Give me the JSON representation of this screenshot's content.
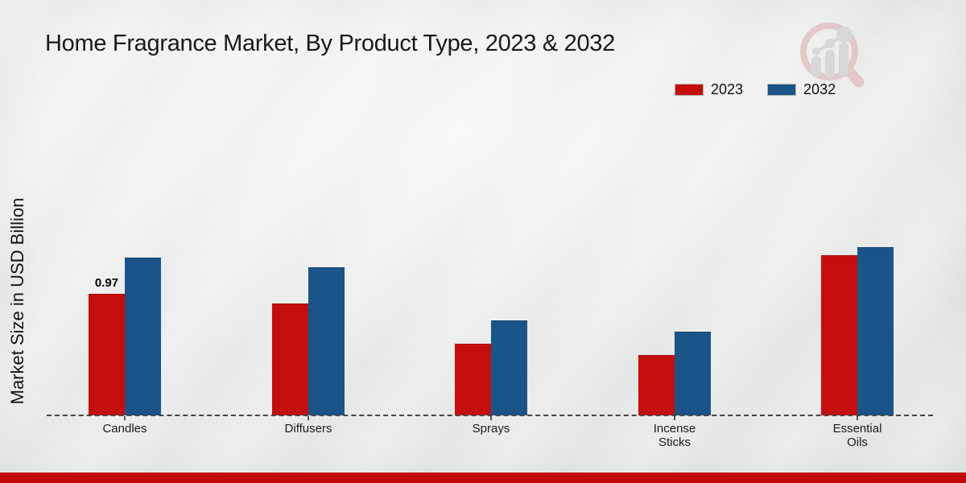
{
  "chart_data": {
    "type": "bar",
    "title": "Home Fragrance Market, By Product Type, 2023 & 2032",
    "ylabel": "Market Size in USD Billion",
    "categories": [
      "Candles",
      "Diffusers",
      "Sprays",
      "Incense Sticks",
      "Essential Oils"
    ],
    "series": [
      {
        "name": "2023",
        "color": "#c60d0d",
        "values": [
          0.97,
          0.89,
          0.57,
          0.48,
          1.28
        ]
      },
      {
        "name": "2032",
        "color": "#1a5488",
        "values": [
          1.26,
          1.18,
          0.76,
          0.67,
          1.34
        ]
      }
    ],
    "ylim": [
      0,
      1.55
    ],
    "grid": false,
    "x_axis_style": "dashed-baseline",
    "legend_position": "top-right",
    "data_labels": [
      {
        "series": "2023",
        "category": "Candles",
        "text": "0.97"
      }
    ]
  },
  "watermark": {
    "name": "market-research-magnifier-logo"
  },
  "footer": {
    "accent_color": "#c00808"
  }
}
